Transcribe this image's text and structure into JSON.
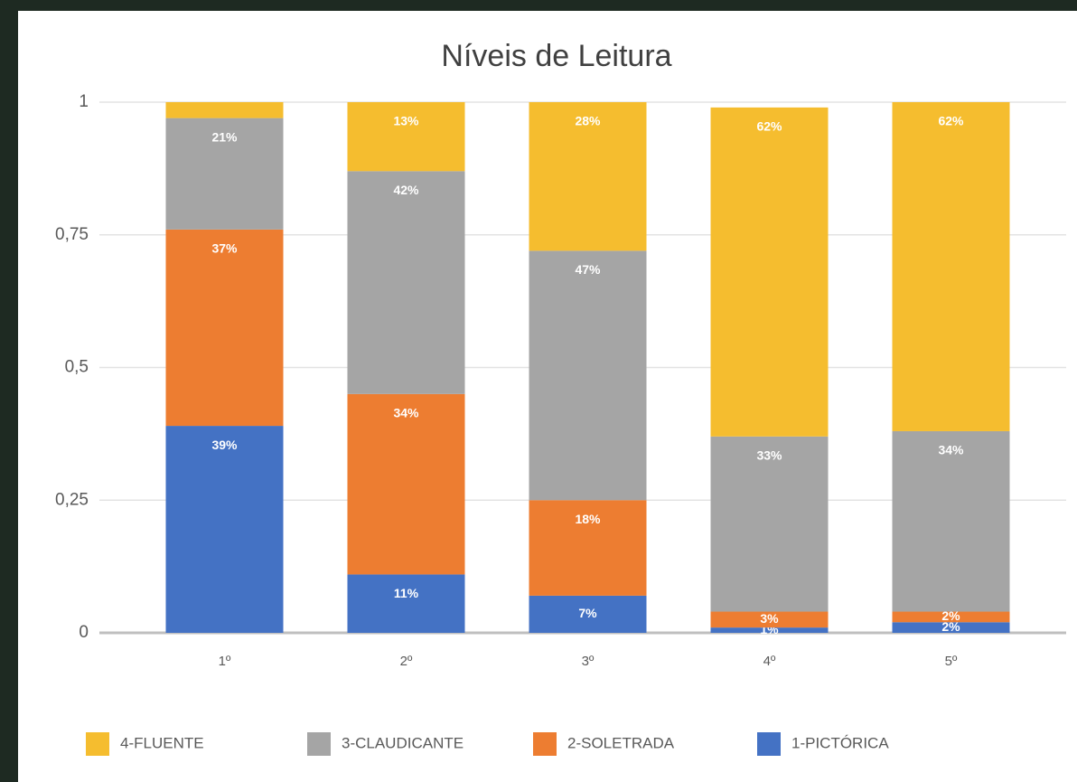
{
  "chart_data": {
    "type": "stacked_bar",
    "title": "Níveis de Leitura",
    "categories": [
      "1º",
      "2º",
      "3º",
      "4º",
      "5º"
    ],
    "series": [
      {
        "name": "4-FLUENTE",
        "color": "#f5bd2f",
        "values": [
          0.03,
          0.13,
          0.28,
          0.62,
          0.62
        ],
        "value_labels": [
          null,
          "13%",
          "28%",
          "62%",
          "62%"
        ]
      },
      {
        "name": "3-CLAUDICANTE",
        "color": "#a5a5a5",
        "values": [
          0.21,
          0.42,
          0.47,
          0.33,
          0.34
        ],
        "value_labels": [
          "21%",
          "42%",
          "47%",
          "33%",
          "34%"
        ]
      },
      {
        "name": "2-SOLETRADA",
        "color": "#ed7d31",
        "values": [
          0.37,
          0.34,
          0.18,
          0.03,
          0.02
        ],
        "value_labels": [
          "37%",
          "34%",
          "18%",
          "3%",
          "2%"
        ]
      },
      {
        "name": "1-PICTÓRICA",
        "color": "#4472c4",
        "values": [
          0.39,
          0.11,
          0.07,
          0.01,
          0.02
        ],
        "value_labels": [
          "39%",
          "11%",
          "7%",
          "1%",
          "2%"
        ]
      }
    ],
    "ylim": [
      0,
      1
    ],
    "yticks": [
      0,
      {
        "value": 0.25,
        "label": "0,25"
      },
      {
        "value": 0.5,
        "label": "0,5"
      },
      {
        "value": 0.75,
        "label": "0,75"
      },
      1
    ],
    "grid": true,
    "legend": "bottom"
  }
}
